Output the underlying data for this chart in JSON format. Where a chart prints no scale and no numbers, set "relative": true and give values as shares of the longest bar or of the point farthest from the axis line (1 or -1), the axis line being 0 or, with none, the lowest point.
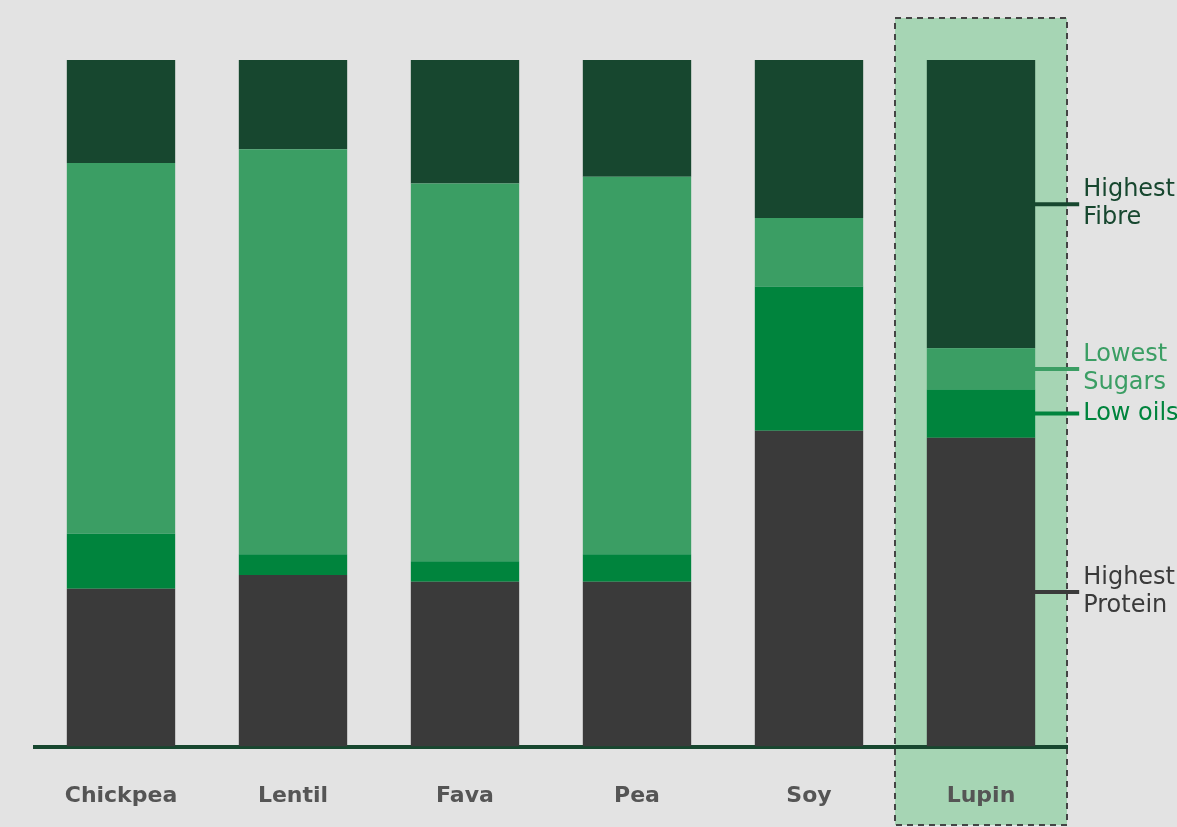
{
  "chart_data": {
    "type": "bar",
    "stacked": true,
    "relative": true,
    "categories": [
      "Chickpea",
      "Lentil",
      "Fava",
      "Pea",
      "Soy",
      "Lupin"
    ],
    "series": [
      {
        "name": "Highest Protein",
        "color": "#3a3a3a",
        "values": [
          0.23,
          0.25,
          0.24,
          0.24,
          0.46,
          0.45
        ]
      },
      {
        "name": "Low oils",
        "color": "#00843d",
        "values": [
          0.08,
          0.03,
          0.03,
          0.04,
          0.21,
          0.07
        ]
      },
      {
        "name": "Lowest Sugars",
        "color": "#3b9e64",
        "values": [
          0.54,
          0.59,
          0.55,
          0.55,
          0.1,
          0.06
        ]
      },
      {
        "name": "Highest Fibre",
        "color": "#17472f",
        "values": [
          0.15,
          0.13,
          0.18,
          0.17,
          0.23,
          0.42
        ]
      }
    ],
    "bands": [
      {
        "axis": "x",
        "from": "Lupin",
        "to": "Lupin",
        "color": "#a6d5b4"
      }
    ],
    "grid": false,
    "legend": "right"
  }
}
